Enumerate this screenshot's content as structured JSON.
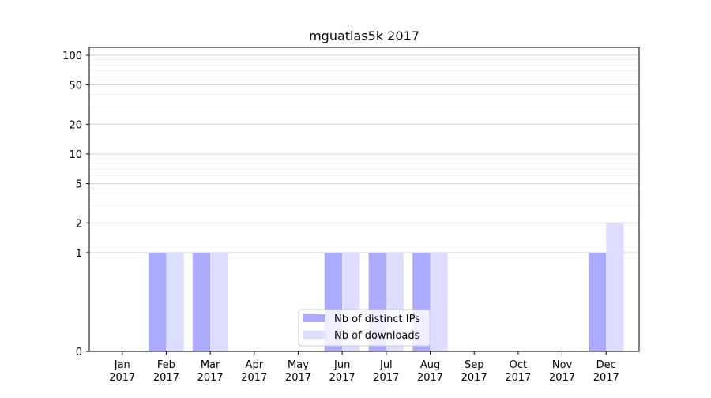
{
  "chart_data": {
    "type": "bar",
    "title": "mguatlas5k 2017",
    "xlabel": "",
    "ylabel": "",
    "y_scale": "symlog",
    "ylim": [
      0,
      120
    ],
    "y_ticks": [
      0,
      1,
      2,
      5,
      10,
      20,
      50,
      100
    ],
    "y_tick_labels": [
      "0",
      "1",
      "2",
      "5",
      "10",
      "20",
      "50",
      "100"
    ],
    "categories": [
      "Jan\n2017",
      "Feb\n2017",
      "Mar\n2017",
      "Apr\n2017",
      "May\n2017",
      "Jun\n2017",
      "Jul\n2017",
      "Aug\n2017",
      "Sep\n2017",
      "Oct\n2017",
      "Nov\n2017",
      "Dec\n2017"
    ],
    "series": [
      {
        "name": "Nb of distinct IPs",
        "color": "#aaaaff",
        "values": [
          0,
          1,
          1,
          0,
          0,
          1,
          1,
          1,
          0,
          0,
          0,
          1
        ]
      },
      {
        "name": "Nb of downloads",
        "color": "#ddddff",
        "values": [
          0,
          1,
          1,
          0,
          0,
          1,
          1,
          1,
          0,
          0,
          0,
          2
        ]
      }
    ],
    "grid": true,
    "legend_position": "lower center"
  }
}
